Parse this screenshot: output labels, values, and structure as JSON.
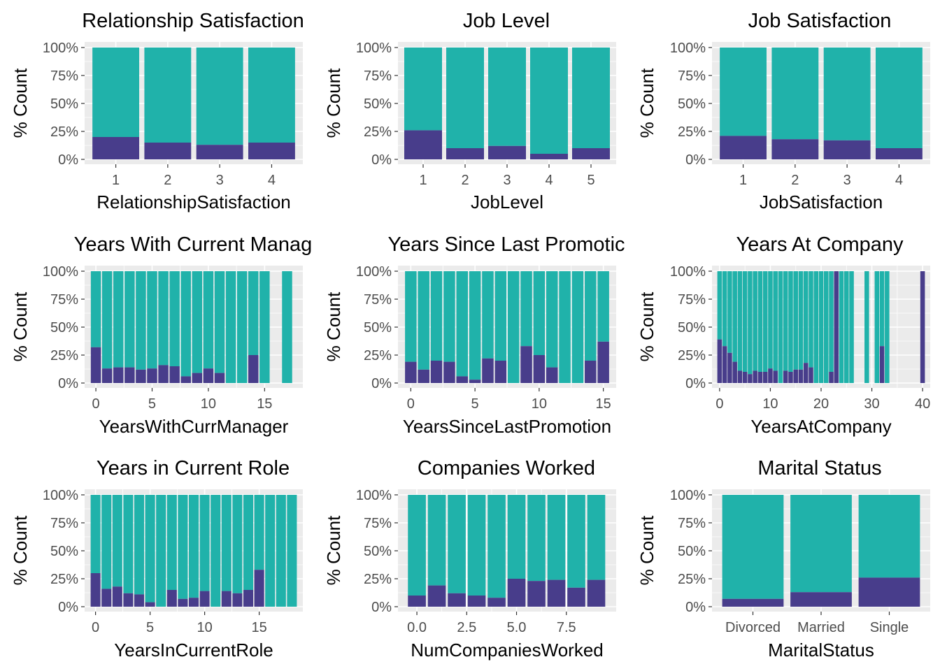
{
  "colors": {
    "left": "#483D8B",
    "stayed": "#20B2AA",
    "panel_background": "#EBEBEB"
  },
  "y_ticks": [
    "0%",
    "25%",
    "50%",
    "75%",
    "100%"
  ],
  "y_label": "% Count",
  "chart_data": [
    {
      "type": "bar",
      "stacked_percent": true,
      "title": "Relationship Satisfaction",
      "xlabel": "RelationshipSatisfaction",
      "ylabel": "% Count",
      "x_kind": "categorical",
      "categories": [
        "1",
        "2",
        "3",
        "4"
      ],
      "series": [
        {
          "values": [
            0.2,
            0.15,
            0.13,
            0.15
          ]
        }
      ],
      "ylim": [
        0,
        1
      ]
    },
    {
      "type": "bar",
      "stacked_percent": true,
      "title": "Job Level",
      "xlabel": "JobLevel",
      "ylabel": "% Count",
      "x_kind": "categorical",
      "categories": [
        "1",
        "2",
        "3",
        "4",
        "5"
      ],
      "series": [
        {
          "values": [
            0.26,
            0.1,
            0.12,
            0.05,
            0.1
          ]
        }
      ],
      "ylim": [
        0,
        1
      ]
    },
    {
      "type": "bar",
      "stacked_percent": true,
      "title": "Job Satisfaction",
      "xlabel": "JobSatisfaction",
      "ylabel": "% Count",
      "x_kind": "categorical",
      "categories": [
        "1",
        "2",
        "3",
        "4"
      ],
      "series": [
        {
          "values": [
            0.21,
            0.18,
            0.17,
            0.1
          ]
        }
      ],
      "ylim": [
        0,
        1
      ]
    },
    {
      "type": "bar",
      "stacked_percent": true,
      "title": "Years With Current Manag",
      "xlabel": "YearsWithCurrManager",
      "ylabel": "% Count",
      "x_kind": "numeric",
      "xlim": [
        -1,
        18.4
      ],
      "x_ticks": [
        0,
        5,
        10,
        15
      ],
      "x": [
        0,
        1,
        2,
        3,
        4,
        5,
        6,
        7,
        8,
        9,
        10,
        11,
        12,
        13,
        14,
        15,
        17
      ],
      "series": [
        {
          "values": [
            0.32,
            0.13,
            0.14,
            0.14,
            0.12,
            0.13,
            0.16,
            0.15,
            0.06,
            0.09,
            0.13,
            0.09,
            0.0,
            0.0,
            0.25,
            0.0,
            0.0
          ]
        }
      ],
      "ylim": [
        0,
        1
      ]
    },
    {
      "type": "bar",
      "stacked_percent": true,
      "title": "Years Since Last Promotic",
      "xlabel": "YearsSinceLastPromotion",
      "ylabel": "% Count",
      "x_kind": "numeric",
      "xlim": [
        -1,
        16
      ],
      "x_ticks": [
        0,
        5,
        10,
        15
      ],
      "x": [
        0,
        1,
        2,
        3,
        4,
        5,
        6,
        7,
        8,
        9,
        10,
        11,
        12,
        13,
        14,
        15
      ],
      "series": [
        {
          "values": [
            0.19,
            0.12,
            0.2,
            0.19,
            0.06,
            0.03,
            0.22,
            0.2,
            0.0,
            0.33,
            0.25,
            0.14,
            0.0,
            0.0,
            0.2,
            0.37
          ]
        }
      ],
      "ylim": [
        0,
        1
      ]
    },
    {
      "type": "bar",
      "stacked_percent": true,
      "title": "Years At Company",
      "xlabel": "YearsAtCompany",
      "ylabel": "% Count",
      "x_kind": "numeric",
      "xlim": [
        -1.5,
        41.5
      ],
      "x_ticks": [
        0,
        10,
        20,
        30,
        40
      ],
      "x": [
        0,
        1,
        2,
        3,
        4,
        5,
        6,
        7,
        8,
        9,
        10,
        11,
        12,
        13,
        14,
        15,
        16,
        17,
        18,
        19,
        20,
        21,
        22,
        23,
        24,
        25,
        26,
        29,
        31,
        32,
        33,
        40
      ],
      "series": [
        {
          "values": [
            0.39,
            0.33,
            0.27,
            0.19,
            0.11,
            0.1,
            0.08,
            0.11,
            0.1,
            0.1,
            0.13,
            0.11,
            0.0,
            0.11,
            0.1,
            0.12,
            0.12,
            0.18,
            0.14,
            0.0,
            0.0,
            0.0,
            0.1,
            1.0,
            0.0,
            0.0,
            0.0,
            0.0,
            0.0,
            0.33,
            0.0,
            1.0
          ]
        }
      ],
      "ylim": [
        0,
        1
      ]
    },
    {
      "type": "bar",
      "stacked_percent": true,
      "title": "Years in Current Role",
      "xlabel": "YearsInCurrentRole",
      "ylabel": "% Count",
      "x_kind": "numeric",
      "xlim": [
        -1,
        19
      ],
      "x_ticks": [
        0,
        5,
        10,
        15
      ],
      "x": [
        0,
        1,
        2,
        3,
        4,
        5,
        6,
        7,
        8,
        9,
        10,
        11,
        12,
        13,
        14,
        15,
        16,
        17,
        18
      ],
      "series": [
        {
          "values": [
            0.3,
            0.16,
            0.18,
            0.12,
            0.11,
            0.04,
            0.0,
            0.15,
            0.07,
            0.08,
            0.14,
            0.0,
            0.14,
            0.12,
            0.15,
            0.33,
            0.0,
            0.0,
            0.0
          ]
        }
      ],
      "ylim": [
        0,
        1
      ]
    },
    {
      "type": "bar",
      "stacked_percent": true,
      "title": "Companies Worked",
      "xlabel": "NumCompaniesWorked",
      "ylabel": "% Count",
      "x_kind": "numeric",
      "xlim": [
        -0.95,
        10
      ],
      "x_ticks": [
        0,
        2.5,
        5,
        7.5
      ],
      "x_tick_labels": [
        "0.0",
        "2.5",
        "5.0",
        "7.5"
      ],
      "x": [
        0,
        1,
        2,
        3,
        4,
        5,
        6,
        7,
        8,
        9
      ],
      "series": [
        {
          "values": [
            0.1,
            0.19,
            0.12,
            0.1,
            0.08,
            0.25,
            0.23,
            0.24,
            0.17,
            0.24
          ]
        }
      ],
      "ylim": [
        0,
        1
      ]
    },
    {
      "type": "bar",
      "stacked_percent": true,
      "title": "Marital Status",
      "xlabel": "MaritalStatus",
      "ylabel": "% Count",
      "x_kind": "categorical",
      "categories": [
        "Divorced",
        "Married",
        "Single"
      ],
      "series": [
        {
          "values": [
            0.07,
            0.13,
            0.26
          ]
        }
      ],
      "ylim": [
        0,
        1
      ]
    }
  ]
}
